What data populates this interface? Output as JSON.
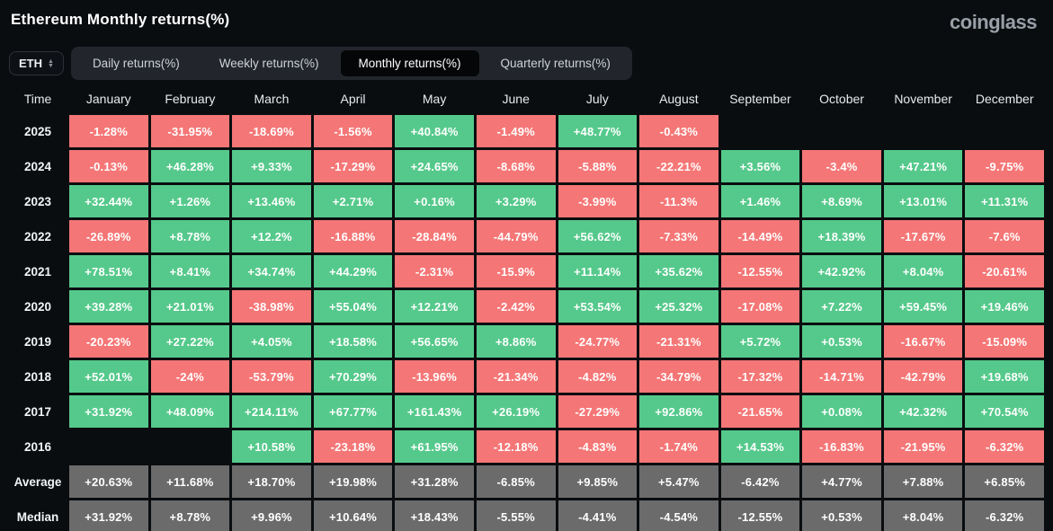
{
  "page": {
    "title": "Ethereum Monthly returns(%)",
    "logo": "coinglass"
  },
  "controls": {
    "symbol_select": {
      "value": "ETH"
    },
    "tabs": [
      {
        "label": "Daily returns(%)",
        "active": false
      },
      {
        "label": "Weekly returns(%)",
        "active": false
      },
      {
        "label": "Monthly returns(%)",
        "active": true
      },
      {
        "label": "Quarterly returns(%)",
        "active": false
      }
    ]
  },
  "colors": {
    "positive": "#55c98b",
    "negative": "#f57676",
    "neutral": "#6b6b6b",
    "background": "#0a0d10"
  },
  "chart_data": {
    "type": "heatmap",
    "title": "Ethereum Monthly returns(%)",
    "columns": [
      "Time",
      "January",
      "February",
      "March",
      "April",
      "May",
      "June",
      "July",
      "August",
      "September",
      "October",
      "November",
      "December"
    ],
    "rows": [
      {
        "label": "2025",
        "kind": "year",
        "values": [
          "-1.28%",
          "-31.95%",
          "-18.69%",
          "-1.56%",
          "+40.84%",
          "-1.49%",
          "+48.77%",
          "-0.43%",
          "",
          "",
          "",
          ""
        ]
      },
      {
        "label": "2024",
        "kind": "year",
        "values": [
          "-0.13%",
          "+46.28%",
          "+9.33%",
          "-17.29%",
          "+24.65%",
          "-8.68%",
          "-5.88%",
          "-22.21%",
          "+3.56%",
          "-3.4%",
          "+47.21%",
          "-9.75%"
        ]
      },
      {
        "label": "2023",
        "kind": "year",
        "values": [
          "+32.44%",
          "+1.26%",
          "+13.46%",
          "+2.71%",
          "+0.16%",
          "+3.29%",
          "-3.99%",
          "-11.3%",
          "+1.46%",
          "+8.69%",
          "+13.01%",
          "+11.31%"
        ]
      },
      {
        "label": "2022",
        "kind": "year",
        "values": [
          "-26.89%",
          "+8.78%",
          "+12.2%",
          "-16.88%",
          "-28.84%",
          "-44.79%",
          "+56.62%",
          "-7.33%",
          "-14.49%",
          "+18.39%",
          "-17.67%",
          "-7.6%"
        ]
      },
      {
        "label": "2021",
        "kind": "year",
        "values": [
          "+78.51%",
          "+8.41%",
          "+34.74%",
          "+44.29%",
          "-2.31%",
          "-15.9%",
          "+11.14%",
          "+35.62%",
          "-12.55%",
          "+42.92%",
          "+8.04%",
          "-20.61%"
        ]
      },
      {
        "label": "2020",
        "kind": "year",
        "values": [
          "+39.28%",
          "+21.01%",
          "-38.98%",
          "+55.04%",
          "+12.21%",
          "-2.42%",
          "+53.54%",
          "+25.32%",
          "-17.08%",
          "+7.22%",
          "+59.45%",
          "+19.46%"
        ]
      },
      {
        "label": "2019",
        "kind": "year",
        "values": [
          "-20.23%",
          "+27.22%",
          "+4.05%",
          "+18.58%",
          "+56.65%",
          "+8.86%",
          "-24.77%",
          "-21.31%",
          "+5.72%",
          "+0.53%",
          "-16.67%",
          "-15.09%"
        ]
      },
      {
        "label": "2018",
        "kind": "year",
        "values": [
          "+52.01%",
          "-24%",
          "-53.79%",
          "+70.29%",
          "-13.96%",
          "-21.34%",
          "-4.82%",
          "-34.79%",
          "-17.32%",
          "-14.71%",
          "-42.79%",
          "+19.68%"
        ]
      },
      {
        "label": "2017",
        "kind": "year",
        "values": [
          "+31.92%",
          "+48.09%",
          "+214.11%",
          "+67.77%",
          "+161.43%",
          "+26.19%",
          "-27.29%",
          "+92.86%",
          "-21.65%",
          "+0.08%",
          "+42.32%",
          "+70.54%"
        ]
      },
      {
        "label": "2016",
        "kind": "year",
        "values": [
          "",
          "",
          "+10.58%",
          "-23.18%",
          "+61.95%",
          "-12.18%",
          "-4.83%",
          "-1.74%",
          "+14.53%",
          "-16.83%",
          "-21.95%",
          "-6.32%"
        ]
      },
      {
        "label": "Average",
        "kind": "stat",
        "values": [
          "+20.63%",
          "+11.68%",
          "+18.70%",
          "+19.98%",
          "+31.28%",
          "-6.85%",
          "+9.85%",
          "+5.47%",
          "-6.42%",
          "+4.77%",
          "+7.88%",
          "+6.85%"
        ]
      },
      {
        "label": "Median",
        "kind": "stat",
        "values": [
          "+31.92%",
          "+8.78%",
          "+9.96%",
          "+10.64%",
          "+18.43%",
          "-5.55%",
          "-4.41%",
          "-4.54%",
          "-12.55%",
          "+0.53%",
          "+8.04%",
          "-6.32%"
        ]
      }
    ]
  }
}
